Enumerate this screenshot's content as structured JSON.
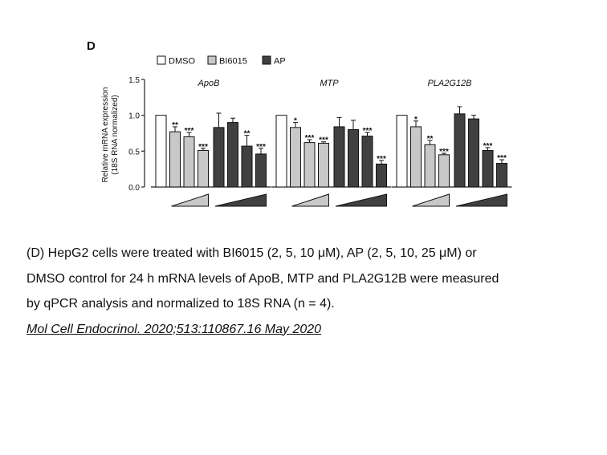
{
  "panel_label": "D",
  "colors": {
    "DMSO": "#ffffff",
    "BI6015": "#c8c8c8",
    "AP": "#404040",
    "axis": "#222222"
  },
  "chart_data": {
    "type": "bar",
    "ylabel_line1": "Relative mRNA expression",
    "ylabel_line2": "(18S RNA normalized)",
    "ylim": [
      0,
      1.5
    ],
    "yticks": [
      "0.0",
      "0.5",
      "1.0",
      "1.5"
    ],
    "ytick_values": [
      0,
      0.5,
      1.0,
      1.5
    ],
    "legend": [
      {
        "name": "DMSO",
        "color": "#ffffff"
      },
      {
        "name": "BI6015",
        "color": "#c8c8c8"
      },
      {
        "name": "AP",
        "color": "#404040"
      }
    ],
    "legend_position": "top",
    "panels": [
      {
        "title": "ApoB",
        "bars": [
          {
            "series": "DMSO",
            "value": 1.0,
            "error": 0,
            "sig": ""
          },
          {
            "series": "BI6015",
            "value": 0.77,
            "error": 0.07,
            "sig": "**"
          },
          {
            "series": "BI6015",
            "value": 0.7,
            "error": 0.06,
            "sig": "***"
          },
          {
            "series": "BI6015",
            "value": 0.51,
            "error": 0.03,
            "sig": "***"
          },
          {
            "series": "AP",
            "value": 0.83,
            "error": 0.2,
            "sig": ""
          },
          {
            "series": "AP",
            "value": 0.9,
            "error": 0.06,
            "sig": ""
          },
          {
            "series": "AP",
            "value": 0.57,
            "error": 0.15,
            "sig": "**"
          },
          {
            "series": "AP",
            "value": 0.46,
            "error": 0.08,
            "sig": "***"
          }
        ]
      },
      {
        "title": "MTP",
        "bars": [
          {
            "series": "DMSO",
            "value": 1.0,
            "error": 0,
            "sig": ""
          },
          {
            "series": "BI6015",
            "value": 0.83,
            "error": 0.07,
            "sig": "*"
          },
          {
            "series": "BI6015",
            "value": 0.62,
            "error": 0.04,
            "sig": "***"
          },
          {
            "series": "BI6015",
            "value": 0.61,
            "error": 0.02,
            "sig": "***"
          },
          {
            "series": "AP",
            "value": 0.84,
            "error": 0.13,
            "sig": ""
          },
          {
            "series": "AP",
            "value": 0.8,
            "error": 0.13,
            "sig": ""
          },
          {
            "series": "AP",
            "value": 0.71,
            "error": 0.05,
            "sig": "***"
          },
          {
            "series": "AP",
            "value": 0.32,
            "error": 0.05,
            "sig": "***"
          }
        ]
      },
      {
        "title": "PLA2G12B",
        "bars": [
          {
            "series": "DMSO",
            "value": 1.0,
            "error": 0,
            "sig": ""
          },
          {
            "series": "BI6015",
            "value": 0.84,
            "error": 0.08,
            "sig": "*"
          },
          {
            "series": "BI6015",
            "value": 0.59,
            "error": 0.06,
            "sig": "**"
          },
          {
            "series": "BI6015",
            "value": 0.45,
            "error": 0.02,
            "sig": "***"
          },
          {
            "series": "AP",
            "value": 1.02,
            "error": 0.1,
            "sig": ""
          },
          {
            "series": "AP",
            "value": 0.95,
            "error": 0.05,
            "sig": ""
          },
          {
            "series": "AP",
            "value": 0.51,
            "error": 0.04,
            "sig": "***"
          },
          {
            "series": "AP",
            "value": 0.33,
            "error": 0.05,
            "sig": "***"
          }
        ]
      }
    ]
  },
  "caption": {
    "line1": "(D) HepG2 cells were treated with BI6015 (2, 5, 10 μM), AP (2, 5, 10, 25 μM) or",
    "line2": "DMSO control for 24 h mRNA levels of ApoB, MTP and PLA2G12B were measured",
    "line3": "by qPCR analysis and normalized to 18S RNA (n = 4).",
    "citation": "Mol Cell Endocrinol. 2020;513:110867.16 May 2020"
  }
}
